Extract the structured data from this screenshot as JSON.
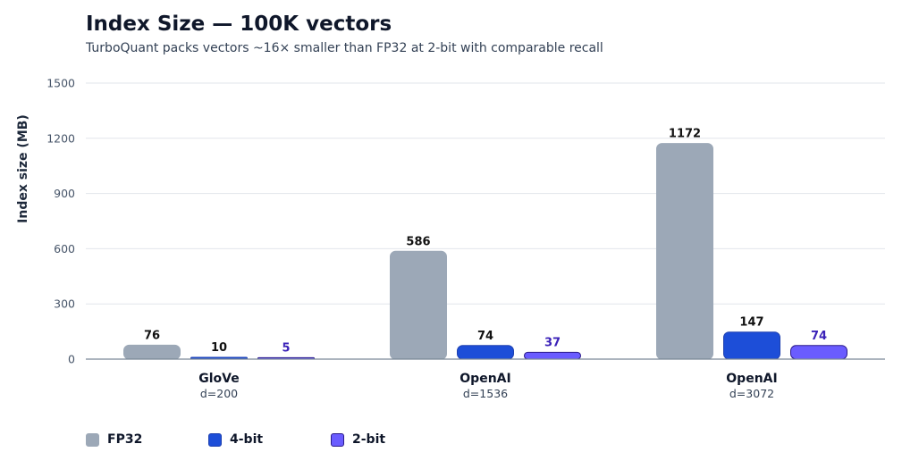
{
  "chart_data": {
    "type": "bar",
    "title": "Index Size — 100K vectors",
    "subtitle": "TurboQuant packs vectors ~16× smaller than FP32 at 2-bit with comparable recall",
    "ylabel": "Index size (MB)",
    "ylim": [
      0,
      1500
    ],
    "yticks": [
      0,
      300,
      600,
      900,
      1200,
      1500
    ],
    "grid": true,
    "legend_position": "bottom-left",
    "categories": [
      {
        "name": "GloVe",
        "detail": "d=200"
      },
      {
        "name": "OpenAI",
        "detail": "d=1536"
      },
      {
        "name": "OpenAI",
        "detail": "d=3072"
      }
    ],
    "series": [
      {
        "name": "FP32",
        "values": [
          76,
          586,
          1172
        ],
        "color": "#9ca8b7",
        "stroke": "#9ca8b7",
        "label_color": "#111111"
      },
      {
        "name": "4-bit",
        "values": [
          10,
          74,
          147
        ],
        "color": "#1d4ed8",
        "stroke": "#1e40af",
        "label_color": "#111111"
      },
      {
        "name": "2-bit",
        "values": [
          5,
          37,
          74
        ],
        "color": "#6a5cff",
        "stroke": "#2a1a8a",
        "label_color": "#3b22b8"
      }
    ]
  }
}
